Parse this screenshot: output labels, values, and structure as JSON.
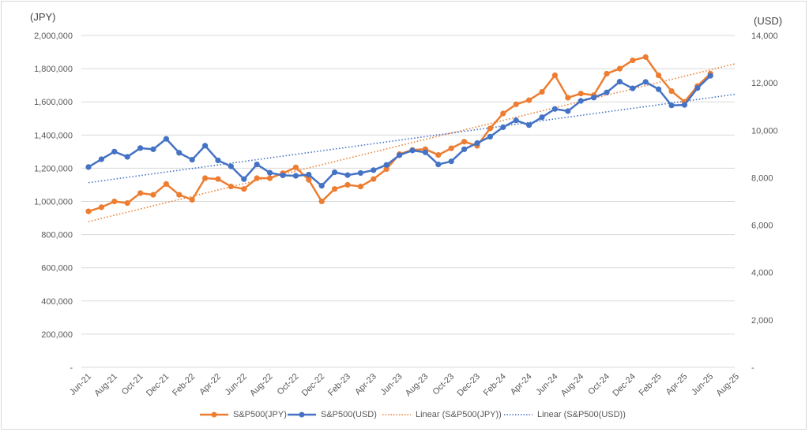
{
  "chart_data": {
    "type": "line",
    "y_unit_left": "(JPY)",
    "y_unit_right": "(USD)",
    "x": [
      "Jun-21",
      "Jul-21",
      "Aug-21",
      "Sep-21",
      "Oct-21",
      "Nov-21",
      "Dec-21",
      "Jan-22",
      "Feb-22",
      "Mar-22",
      "Apr-22",
      "May-22",
      "Jun-22",
      "Jul-22",
      "Aug-22",
      "Sep-22",
      "Oct-22",
      "Nov-22",
      "Dec-22",
      "Jan-23",
      "Feb-23",
      "Mar-23",
      "Apr-23",
      "May-23",
      "Jun-23",
      "Jul-23",
      "Aug-23",
      "Sep-23",
      "Oct-23",
      "Nov-23",
      "Dec-23",
      "Jan-24",
      "Feb-24",
      "Mar-24",
      "Apr-24",
      "May-24",
      "Jun-24",
      "Jul-24",
      "Aug-24",
      "Sep-24",
      "Oct-24",
      "Nov-24",
      "Dec-24",
      "Jan-25",
      "Feb-25",
      "Mar-25",
      "Apr-25",
      "May-25",
      "Jun-25"
    ],
    "x_tick_labels": [
      "Jun-21",
      "Aug-21",
      "Oct-21",
      "Dec-21",
      "Feb-22",
      "Apr-22",
      "Jun-22",
      "Aug-22",
      "Oct-22",
      "Dec-22",
      "Feb-23",
      "Apr-23",
      "Jun-23",
      "Aug-23",
      "Oct-23",
      "Dec-23",
      "Feb-24",
      "Apr-24",
      "Jun-24",
      "Aug-24",
      "Oct-24",
      "Dec-24",
      "Feb-25",
      "Apr-25",
      "Jun-25",
      "Aug-25"
    ],
    "y_left": {
      "ylim": [
        0,
        2000000
      ],
      "ticks": [
        "-",
        "200,000",
        "400,000",
        "600,000",
        "800,000",
        "1,000,000",
        "1,200,000",
        "1,400,000",
        "1,600,000",
        "1,800,000",
        "2,000,000"
      ]
    },
    "y_right": {
      "ylim": [
        0,
        14000
      ],
      "ticks": [
        "-",
        "2,000",
        "4,000",
        "6,000",
        "8,000",
        "10,000",
        "12,000",
        "14,000"
      ]
    },
    "grid": "horizontal",
    "legend_position": "bottom",
    "series": [
      {
        "name": "S&P500(JPY)",
        "axis": "left",
        "color": "#ed7d31",
        "values": [
          940000,
          965000,
          1000000,
          990000,
          1050000,
          1040000,
          1105000,
          1040000,
          1010000,
          1140000,
          1135000,
          1090000,
          1075000,
          1140000,
          1140000,
          1170000,
          1205000,
          1130000,
          1000000,
          1075000,
          1100000,
          1090000,
          1135000,
          1195000,
          1285000,
          1310000,
          1315000,
          1280000,
          1320000,
          1360000,
          1335000,
          1440000,
          1530000,
          1585000,
          1610000,
          1660000,
          1760000,
          1625000,
          1650000,
          1640000,
          1770000,
          1800000,
          1850000,
          1870000,
          1760000,
          1665000,
          1600000,
          1695000,
          1770000
        ]
      },
      {
        "name": "S&P500(USD)",
        "axis": "right",
        "color": "#4472c4",
        "values": [
          8450,
          8780,
          9100,
          8880,
          9250,
          9200,
          9640,
          9050,
          8760,
          9350,
          8730,
          8480,
          7940,
          8560,
          8210,
          8100,
          8080,
          8130,
          7660,
          8230,
          8110,
          8200,
          8320,
          8540,
          8950,
          9150,
          9070,
          8560,
          8690,
          9200,
          9460,
          9730,
          10130,
          10420,
          10220,
          10550,
          10900,
          10810,
          11240,
          11380,
          11600,
          12050,
          11770,
          12040,
          11730,
          11050,
          11070,
          11780,
          12300
        ]
      },
      {
        "name": "Linear (S&P500(JPY))",
        "axis": "left",
        "color": "#ed7d31",
        "style": "dotted",
        "trendline_of": "S&P500(JPY)"
      },
      {
        "name": "Linear (S&P500(USD))",
        "axis": "right",
        "color": "#4472c4",
        "style": "dotted",
        "trendline_of": "S&P500(USD)"
      }
    ]
  }
}
